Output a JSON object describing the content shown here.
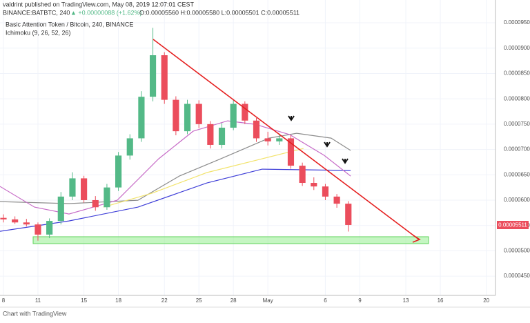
{
  "chart_data": {
    "type": "candlestick",
    "header": "valdrint published on TradingView.com, May 08, 2019 12:07:01 CEST",
    "symbol": "BINANCE:BATBTC, 240",
    "change": "▲ +0.00000088 (+1.62%)",
    "ohlc_label": "O:0.00005560 H:0.00005580 L:0.00005501 C:0.00005511",
    "title": "Basic Attention Token / Bitcoin, 240, BINANCE",
    "indicator": "Ichimoku (9, 26, 52, 26)",
    "last_price": "0.00005511",
    "footer": "Chart with TradingView",
    "xlim": [
      -0.3,
      42.8
    ],
    "ylim": [
      4.12e-05,
      9.95e-05
    ],
    "xticks": [
      {
        "value": 0,
        "label": "8"
      },
      {
        "value": 3,
        "label": "11"
      },
      {
        "value": 7,
        "label": "15"
      },
      {
        "value": 10,
        "label": "18"
      },
      {
        "value": 14,
        "label": "22"
      },
      {
        "value": 17,
        "label": "25"
      },
      {
        "value": 20,
        "label": "28"
      },
      {
        "value": 23,
        "label": "May"
      },
      {
        "value": 28,
        "label": "6"
      },
      {
        "value": 31,
        "label": "9"
      },
      {
        "value": 35,
        "label": "13"
      },
      {
        "value": 38,
        "label": "16"
      },
      {
        "value": 42,
        "label": "20"
      }
    ],
    "yticks": [
      {
        "value": 9.5e-05,
        "label": "0.00009500"
      },
      {
        "value": 9e-05,
        "label": "0.00009000"
      },
      {
        "value": 8.5e-05,
        "label": "0.00008500"
      },
      {
        "value": 8e-05,
        "label": "0.00008000"
      },
      {
        "value": 7.5e-05,
        "label": "0.00007500"
      },
      {
        "value": 7e-05,
        "label": "0.00007000"
      },
      {
        "value": 6.5e-05,
        "label": "0.00006500"
      },
      {
        "value": 6e-05,
        "label": "0.00006000"
      },
      {
        "value": 5.5e-05,
        "label": "0.00005500"
      },
      {
        "value": 5e-05,
        "label": "0.00005000"
      },
      {
        "value": 4.5e-05,
        "label": "0.00004500"
      }
    ],
    "grid": true,
    "up_color": "#53b987",
    "down_color": "#eb4d5c",
    "x": [
      0,
      1,
      2,
      3,
      4,
      5,
      6,
      7,
      8,
      9,
      10,
      11,
      12,
      13,
      14,
      15,
      16,
      17,
      18,
      19,
      20,
      21,
      22,
      23,
      24,
      25,
      26,
      27,
      28,
      29,
      30
    ],
    "open": [
      5.65e-05,
      5.62e-05,
      5.56e-05,
      5.52e-05,
      5.32e-05,
      5.59e-05,
      6.07e-05,
      6.43e-05,
      6e-05,
      5.86e-05,
      6.25e-05,
      6.88e-05,
      7.22e-05,
      8.04e-05,
      8.86e-05,
      7.98e-05,
      7.36e-05,
      7.9e-05,
      7.5e-05,
      7.09e-05,
      7.43e-05,
      7.9e-05,
      7.57e-05,
      7.22e-05,
      7.16e-05,
      7.22e-05,
      6.68e-05,
      6.34e-05,
      6.27e-05,
      6.07e-05,
      5.93e-05
    ],
    "high": [
      5.72e-05,
      5.68e-05,
      5.63e-05,
      5.56e-05,
      5.64e-05,
      6.16e-05,
      6.55e-05,
      6.48e-05,
      6.08e-05,
      6.32e-05,
      6.95e-05,
      7.3e-05,
      8.15e-05,
      9.4e-05,
      8.92e-05,
      8.05e-05,
      7.98e-05,
      7.97e-05,
      7.56e-05,
      7.52e-05,
      7.98e-05,
      7.95e-05,
      7.62e-05,
      7.35e-05,
      7.31e-05,
      7.28e-05,
      6.74e-05,
      6.45e-05,
      6.32e-05,
      6.12e-05,
      5.98e-05
    ],
    "low": [
      5.56e-05,
      5.53e-05,
      5.48e-05,
      5.2e-05,
      5.25e-05,
      5.52e-05,
      6e-05,
      5.95e-05,
      5.79e-05,
      5.81e-05,
      6.18e-05,
      6.8e-05,
      7.15e-05,
      7.95e-05,
      7.9e-05,
      7.28e-05,
      7.3e-05,
      7.42e-05,
      7.02e-05,
      7.02e-05,
      7.38e-05,
      7.5e-05,
      7.15e-05,
      7.08e-05,
      7.09e-05,
      6.62e-05,
      6.28e-05,
      6.2e-05,
      6e-05,
      5.85e-05,
      5.38e-05
    ],
    "close": [
      5.62e-05,
      5.56e-05,
      5.52e-05,
      5.32e-05,
      5.59e-05,
      6.07e-05,
      6.43e-05,
      6e-05,
      5.86e-05,
      6.25e-05,
      6.88e-05,
      7.22e-05,
      8.04e-05,
      8.86e-05,
      7.98e-05,
      7.36e-05,
      7.9e-05,
      7.5e-05,
      7.09e-05,
      7.43e-05,
      7.9e-05,
      7.57e-05,
      7.22e-05,
      7.16e-05,
      7.22e-05,
      6.68e-05,
      6.34e-05,
      6.27e-05,
      6.07e-05,
      5.93e-05,
      5.51e-05
    ],
    "lines": [
      {
        "color": "#3f3fd8",
        "x": [
          -0.3,
          5.7,
          11.7,
          17.7,
          22.5,
          30.2
        ],
        "values": [
          5.386e-05,
          5.59e-05,
          5.862e-05,
          6.339e-05,
          6.612e-05,
          6.585e-05
        ]
      },
      {
        "color": "#8c8c8c",
        "x": [
          -0.3,
          5.7,
          11.7,
          15.3,
          18.9,
          23.1,
          25.5,
          28.5,
          30.2
        ],
        "values": [
          5.971e-05,
          5.931e-05,
          5.999e-05,
          6.475e-05,
          6.816e-05,
          7.225e-05,
          7.32e-05,
          7.225e-05,
          6.98e-05
        ]
      },
      {
        "color": "#f2e36b",
        "x": [
          8.7,
          12.9,
          17.7,
          22.5,
          26.1
        ],
        "values": [
          5.862e-05,
          6.135e-05,
          6.544e-05,
          6.816e-05,
          7.02e-05
        ]
      },
      {
        "color": "#c76cc7",
        "x": [
          -0.3,
          2.7,
          5.7,
          9.9,
          13.5,
          16.5,
          19.5,
          21.9,
          24.9,
          27.9,
          30.2
        ],
        "values": [
          6.271e-05,
          5.862e-05,
          5.726e-05,
          5.999e-05,
          6.816e-05,
          7.361e-05,
          7.565e-05,
          7.497e-05,
          7.293e-05,
          6.884e-05,
          6.475e-05
        ]
      }
    ]
  }
}
